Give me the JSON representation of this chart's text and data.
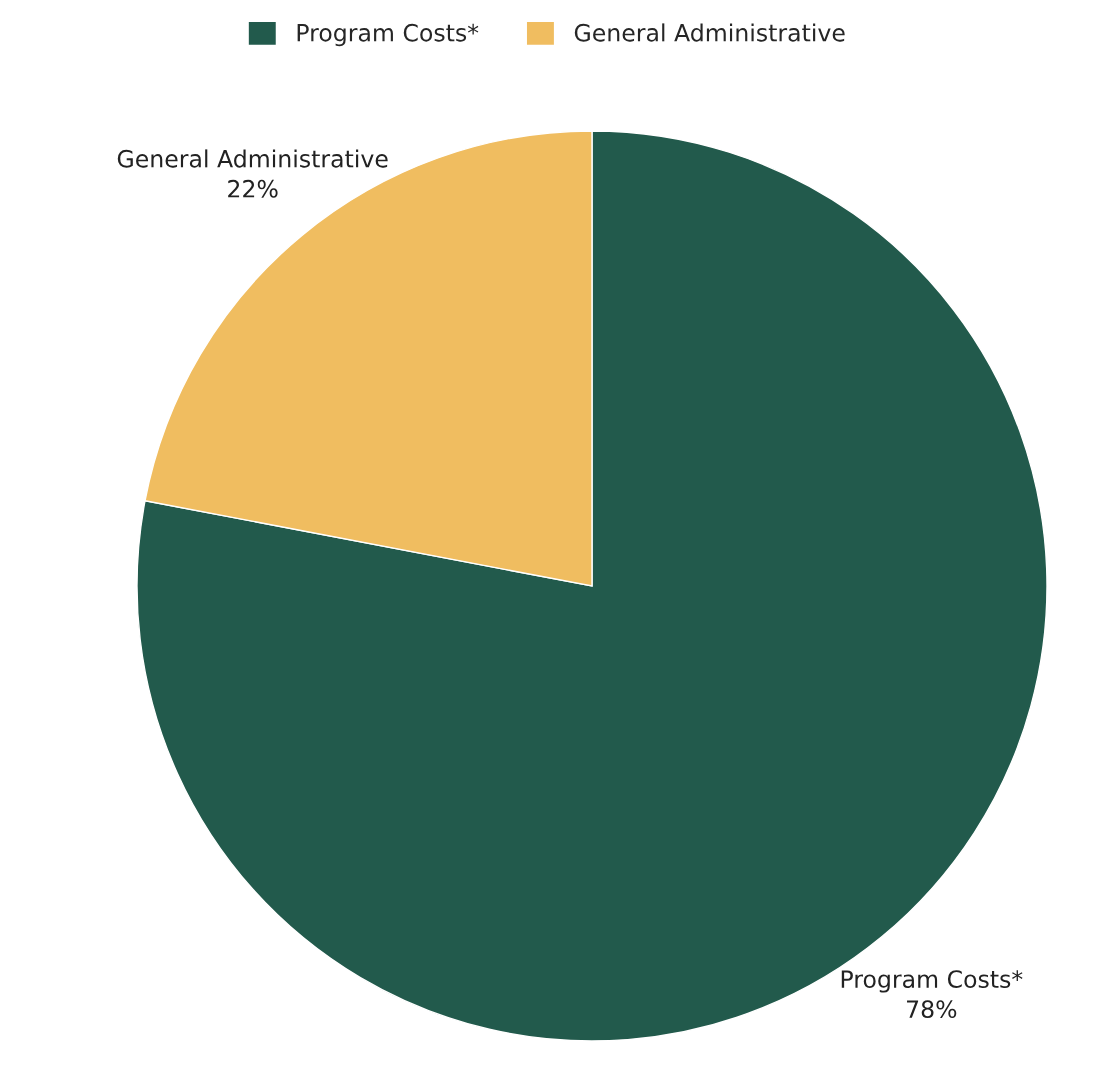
{
  "chart_data": {
    "type": "pie",
    "categories": [
      "Program Costs*",
      "General Administrative"
    ],
    "values": [
      78,
      22
    ],
    "colors": [
      "#225a4c",
      "#f0bd60"
    ],
    "value_labels": [
      "78%",
      "22%"
    ],
    "legend": "top"
  }
}
